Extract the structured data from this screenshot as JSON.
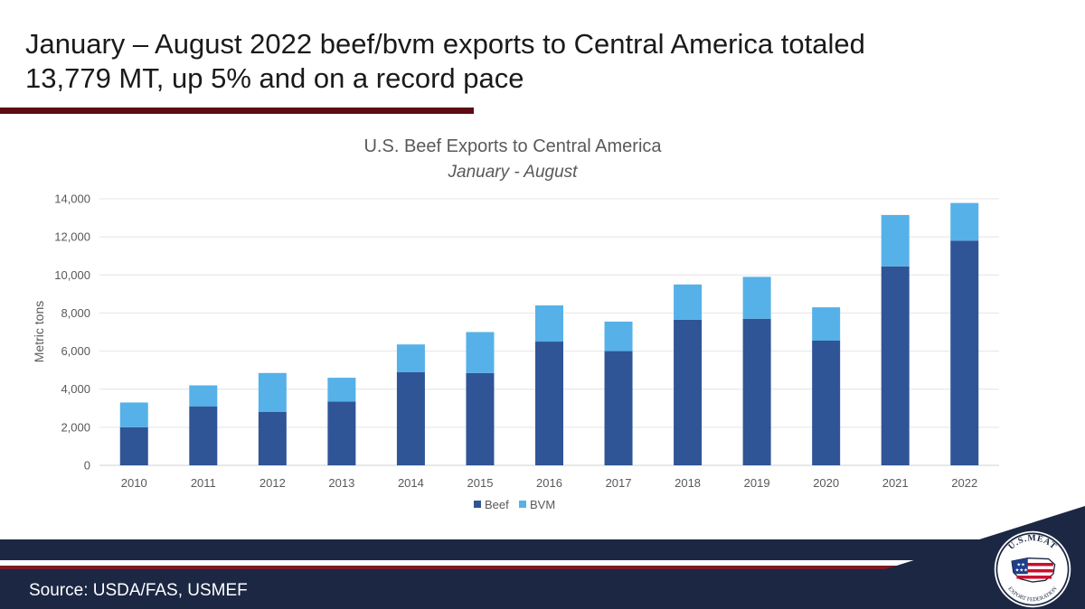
{
  "slide": {
    "title_line1": "January – August 2022 beef/bvm exports to Central America totaled",
    "title_line2": "13,779 MT, up 5% and on a record pace",
    "source": "Source: USDA/FAS, USMEF",
    "logo_text_top": "U.S.MEAT",
    "logo_text_bottom": "EXPORT FEDERATION"
  },
  "colors": {
    "beef": "#2f5597",
    "bvm": "#56b1e8",
    "accent_red": "#5e0b12",
    "navy": "#1c2743"
  },
  "chart_data": {
    "type": "bar",
    "stacked": true,
    "title": "U.S. Beef Exports to Central America",
    "subtitle": "January - August",
    "xlabel": "",
    "ylabel": "Metric tons",
    "ylim": [
      0,
      14000
    ],
    "yticks": [
      0,
      2000,
      4000,
      6000,
      8000,
      10000,
      12000,
      14000
    ],
    "ytick_labels": [
      "0",
      "2,000",
      "4,000",
      "6,000",
      "8,000",
      "10,000",
      "12,000",
      "14,000"
    ],
    "grid": true,
    "legend_position": "bottom",
    "categories": [
      "2010",
      "2011",
      "2012",
      "2013",
      "2014",
      "2015",
      "2016",
      "2017",
      "2018",
      "2019",
      "2020",
      "2021",
      "2022"
    ],
    "series": [
      {
        "name": "Beef",
        "values": [
          2000,
          3100,
          2800,
          3350,
          4900,
          4850,
          6500,
          6000,
          7650,
          7700,
          6550,
          10450,
          11800
        ]
      },
      {
        "name": "BVM",
        "values": [
          1300,
          1100,
          2050,
          1250,
          1450,
          2150,
          1900,
          1550,
          1850,
          2200,
          1750,
          2700,
          1979
        ]
      }
    ]
  }
}
